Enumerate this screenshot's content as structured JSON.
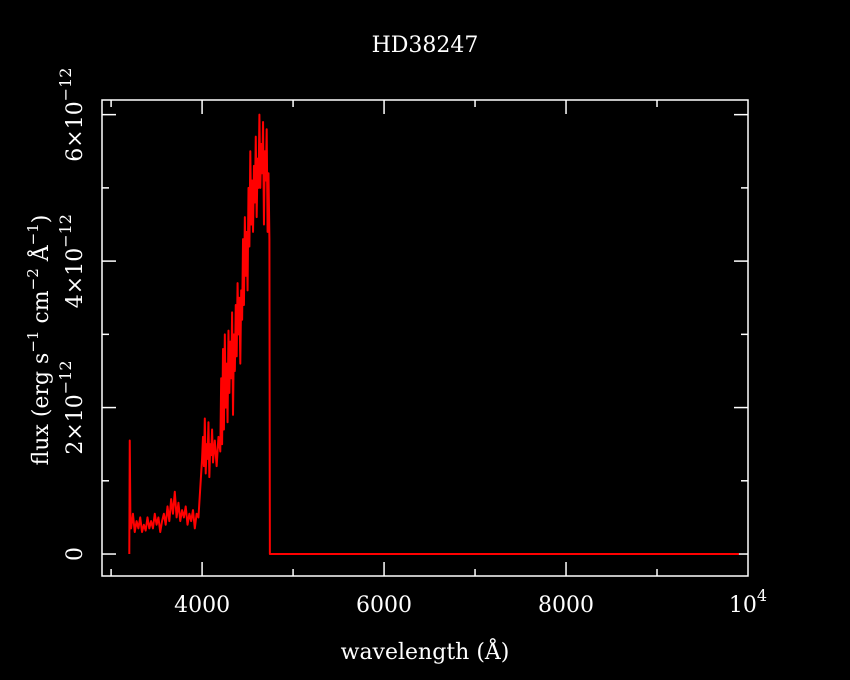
{
  "chart_data": {
    "type": "line",
    "title": "HD38247",
    "xlabel": "wavelength (Å)",
    "ylabel": {
      "base": "flux (erg s",
      "e1": "−1",
      "mid1": " cm",
      "e2": "−2",
      "mid2": " Å",
      "e3": "−1",
      "end": ")"
    },
    "xlim": [
      2900,
      10000
    ],
    "ylim": [
      -3e-13,
      6.2e-12
    ],
    "grid": false,
    "x_ticks": [
      {
        "value": 4000,
        "label": "4000"
      },
      {
        "value": 6000,
        "label": "6000"
      },
      {
        "value": 8000,
        "label": "8000"
      },
      {
        "value": 10000,
        "label": "10",
        "exp": "4"
      }
    ],
    "y_ticks": [
      {
        "value": 0,
        "label": "0"
      },
      {
        "value": 2e-12,
        "label": "2×10",
        "exp": "−12"
      },
      {
        "value": 4e-12,
        "label": "4×10",
        "exp": "−12"
      },
      {
        "value": 6e-12,
        "label": "6×10",
        "exp": "−12"
      }
    ],
    "series": [
      {
        "color": "#ff0000",
        "points": [
          [
            3200,
            0.0
          ],
          [
            3205,
            1.55e-12
          ],
          [
            3212,
            5e-13
          ],
          [
            3220,
            3.5e-13
          ],
          [
            3240,
            5.5e-13
          ],
          [
            3260,
            3e-13
          ],
          [
            3280,
            4.5e-13
          ],
          [
            3300,
            3.5e-13
          ],
          [
            3320,
            5e-13
          ],
          [
            3340,
            3e-13
          ],
          [
            3360,
            4e-13
          ],
          [
            3380,
            3.2e-13
          ],
          [
            3400,
            5e-13
          ],
          [
            3420,
            3.5e-13
          ],
          [
            3440,
            4.5e-13
          ],
          [
            3460,
            3.5e-13
          ],
          [
            3480,
            5.5e-13
          ],
          [
            3500,
            4e-13
          ],
          [
            3520,
            5e-13
          ],
          [
            3540,
            3e-13
          ],
          [
            3560,
            4.5e-13
          ],
          [
            3580,
            5.5e-13
          ],
          [
            3600,
            4e-13
          ],
          [
            3620,
            6.5e-13
          ],
          [
            3640,
            4.5e-13
          ],
          [
            3660,
            7.5e-13
          ],
          [
            3680,
            5.5e-13
          ],
          [
            3700,
            8.5e-13
          ],
          [
            3720,
            5e-13
          ],
          [
            3740,
            7e-13
          ],
          [
            3760,
            4.5e-13
          ],
          [
            3780,
            6e-13
          ],
          [
            3800,
            5e-13
          ],
          [
            3820,
            6.5e-13
          ],
          [
            3840,
            4e-13
          ],
          [
            3860,
            5.5e-13
          ],
          [
            3880,
            4.5e-13
          ],
          [
            3900,
            6e-13
          ],
          [
            3920,
            3.5e-13
          ],
          [
            3940,
            5.5e-13
          ],
          [
            3960,
            5e-13
          ],
          [
            3980,
            9e-13
          ],
          [
            4000,
            1.3e-12
          ],
          [
            4010,
            1.6e-12
          ],
          [
            4020,
            1.2e-12
          ],
          [
            4030,
            1.85e-12
          ],
          [
            4040,
            1.1e-12
          ],
          [
            4050,
            1.5e-12
          ],
          [
            4060,
            1.3e-12
          ],
          [
            4070,
            1.8e-12
          ],
          [
            4080,
            1.05e-12
          ],
          [
            4090,
            1.5e-12
          ],
          [
            4100,
            1.35e-12
          ],
          [
            4110,
            1.7e-12
          ],
          [
            4120,
            1.25e-12
          ],
          [
            4140,
            1.55e-12
          ],
          [
            4160,
            1.2e-12
          ],
          [
            4180,
            1.6e-12
          ],
          [
            4200,
            1.4e-12
          ],
          [
            4210,
            2.4e-12
          ],
          [
            4220,
            1.5e-12
          ],
          [
            4230,
            2.8e-12
          ],
          [
            4240,
            1.7e-12
          ],
          [
            4250,
            3e-12
          ],
          [
            4260,
            2e-12
          ],
          [
            4270,
            2.6e-12
          ],
          [
            4280,
            1.8e-12
          ],
          [
            4290,
            3.05e-12
          ],
          [
            4300,
            2.2e-12
          ],
          [
            4310,
            2.9e-12
          ],
          [
            4320,
            2.4e-12
          ],
          [
            4330,
            3.3e-12
          ],
          [
            4340,
            1.9e-12
          ],
          [
            4350,
            3e-12
          ],
          [
            4360,
            2.5e-12
          ],
          [
            4370,
            3.4e-12
          ],
          [
            4380,
            2.7e-12
          ],
          [
            4390,
            3.7e-12
          ],
          [
            4400,
            3e-12
          ],
          [
            4410,
            3.5e-12
          ],
          [
            4420,
            2.6e-12
          ],
          [
            4430,
            3.6e-12
          ],
          [
            4440,
            3.2e-12
          ],
          [
            4450,
            4.3e-12
          ],
          [
            4460,
            3.4e-12
          ],
          [
            4470,
            4.6e-12
          ],
          [
            4480,
            3.8e-12
          ],
          [
            4490,
            4.4e-12
          ],
          [
            4500,
            3.6e-12
          ],
          [
            4510,
            5e-12
          ],
          [
            4520,
            4.2e-12
          ],
          [
            4530,
            5.5e-12
          ],
          [
            4540,
            4.5e-12
          ],
          [
            4550,
            5.1e-12
          ],
          [
            4560,
            4.4e-12
          ],
          [
            4570,
            5.3e-12
          ],
          [
            4580,
            4.8e-12
          ],
          [
            4590,
            5.7e-12
          ],
          [
            4600,
            4.6e-12
          ],
          [
            4610,
            5.4e-12
          ],
          [
            4620,
            5e-12
          ],
          [
            4630,
            6e-12
          ],
          [
            4640,
            5e-12
          ],
          [
            4650,
            5.6e-12
          ],
          [
            4660,
            5.2e-12
          ],
          [
            4670,
            5.9e-12
          ],
          [
            4680,
            4.5e-12
          ],
          [
            4690,
            5.5e-12
          ],
          [
            4700,
            5.1e-12
          ],
          [
            4710,
            5.8e-12
          ],
          [
            4720,
            4.4e-12
          ],
          [
            4730,
            5.2e-12
          ],
          [
            4740,
            4.3e-12
          ],
          [
            4745,
            0.0
          ],
          [
            9900,
            0.0
          ]
        ]
      }
    ]
  }
}
